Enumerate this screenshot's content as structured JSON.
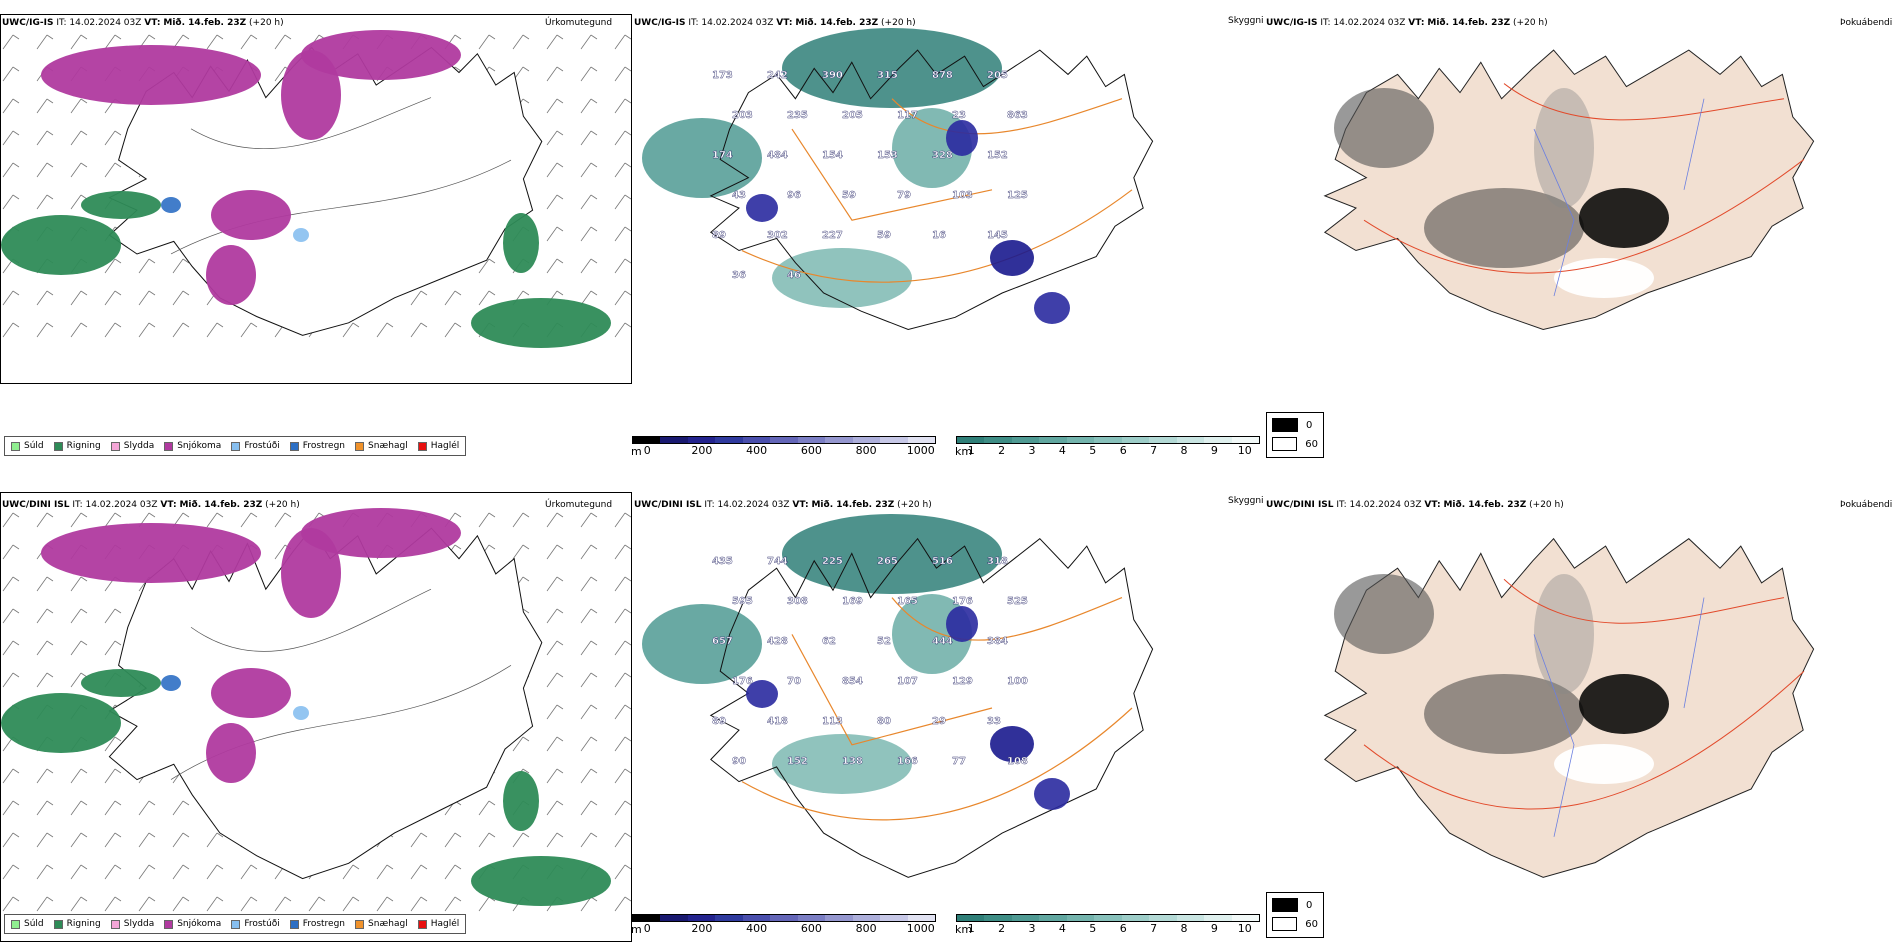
{
  "rows": [
    {
      "model": "UWC/IG-IS",
      "it_label": "IT:",
      "it_value": "14.02.2024 03Z",
      "vt_label": "VT:",
      "vt_value": "Mið. 14.feb. 23Z",
      "lead": "(+20 h)",
      "precip_title": "Úrkomutegund",
      "vis_title": "Skyggni",
      "cloud_title": "Þokuábendi",
      "vis_numbers": [
        "173",
        "242",
        "390",
        "315",
        "878",
        "205",
        "203",
        "235",
        "205",
        "117",
        "23",
        "863",
        "174",
        "484",
        "154",
        "153",
        "328",
        "152",
        "43",
        "96",
        "59",
        "79",
        "103",
        "125",
        "89",
        "302",
        "227",
        "59",
        "16",
        "145",
        "36",
        "46"
      ]
    },
    {
      "model": "UWC/DINI ISL",
      "it_label": "IT:",
      "it_value": "14.02.2024 03Z",
      "vt_label": "VT:",
      "vt_value": "Mið. 14.feb. 23Z",
      "lead": "(+20 h)",
      "precip_title": "Úrkomutegund",
      "vis_title": "Skyggni",
      "cloud_title": "Þokuábendi",
      "vis_numbers": [
        "435",
        "744",
        "225",
        "265",
        "516",
        "318",
        "595",
        "308",
        "169",
        "165",
        "176",
        "525",
        "657",
        "428",
        "62",
        "52",
        "444",
        "384",
        "176",
        "70",
        "854",
        "107",
        "129",
        "100",
        "89",
        "418",
        "113",
        "80",
        "29",
        "33",
        "90",
        "152",
        "138",
        "166",
        "77",
        "108"
      ]
    }
  ],
  "precip_legend": [
    {
      "label": "Súld",
      "color": "#90ee90"
    },
    {
      "label": "Rigning",
      "color": "#2e8b57"
    },
    {
      "label": "Slydda",
      "color": "#f4a6d7"
    },
    {
      "label": "Snjókoma",
      "color": "#b03a9f"
    },
    {
      "label": "Frostúði",
      "color": "#87bff0"
    },
    {
      "label": "Frostregn",
      "color": "#2d6fc4"
    },
    {
      "label": "Snæhagl",
      "color": "#f0922b"
    },
    {
      "label": "Haglél",
      "color": "#e81010"
    }
  ],
  "height_bar": {
    "unit": "m",
    "ticks": [
      "0",
      "200",
      "400",
      "600",
      "800",
      "1000"
    ],
    "colors": [
      "#000000",
      "#191970",
      "#23238e",
      "#2f3a9e",
      "#4a4fad",
      "#6466b8",
      "#7b7ec4",
      "#9597cf",
      "#adafdb",
      "#c7c8e7",
      "#e1e2f2"
    ]
  },
  "vis_bar": {
    "unit": "km",
    "ticks": [
      "1",
      "2",
      "3",
      "4",
      "5",
      "6",
      "7",
      "8",
      "9",
      "10"
    ],
    "colors": [
      "#2f7f78",
      "#3e8d85",
      "#4f9a93",
      "#61a7a0",
      "#74b4ad",
      "#88c1bb",
      "#9dcdc8",
      "#b3d9d5",
      "#c9e5e2",
      "#dff0ee",
      "#f2f9f8"
    ]
  },
  "cloud_legend": {
    "top": "0",
    "bottom": "60",
    "top_color": "#000000",
    "bottom_color": "#ffffff"
  }
}
